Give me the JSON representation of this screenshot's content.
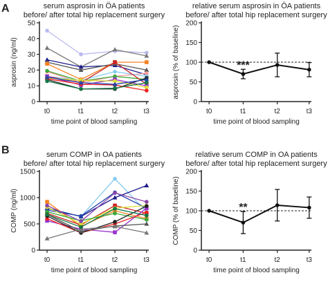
{
  "panel_labels": [
    "A",
    "B"
  ],
  "chart_data": [
    {
      "id": "A-left",
      "type": "line",
      "title": "serum asprosin in ÖA patients",
      "subtitle": "before/ after total hip replacement surgery",
      "xlabel": "time point of blood sampling",
      "ylabel": "asprosin (ng/ml)",
      "categories": [
        "t0",
        "t1",
        "t2",
        "t3"
      ],
      "ylim": [
        0,
        50
      ],
      "yticks": [
        0,
        10,
        20,
        30,
        40,
        50
      ],
      "series": [
        {
          "color": "#b9b9ee",
          "marker": "circle",
          "values": [
            45,
            30,
            32,
            31
          ]
        },
        {
          "color": "#777777",
          "marker": "triangle",
          "values": [
            34,
            22,
            33,
            29
          ]
        },
        {
          "color": "#1a1a8c",
          "marker": "triangle",
          "values": [
            26.5,
            22,
            23,
            17
          ]
        },
        {
          "color": "#555555",
          "marker": "triangle",
          "values": [
            25,
            20,
            24,
            20
          ]
        },
        {
          "color": "#f58220",
          "marker": "square",
          "values": [
            24,
            14,
            25,
            25
          ]
        },
        {
          "color": "#ff9999",
          "marker": "circle",
          "values": [
            19,
            12,
            16,
            18
          ]
        },
        {
          "color": "#3aa83a",
          "marker": "circle",
          "values": [
            19.5,
            13,
            16,
            14
          ]
        },
        {
          "color": "#88ccee",
          "marker": "circle",
          "values": [
            16,
            13.5,
            19,
            16
          ]
        },
        {
          "color": "#cc2222",
          "marker": "square",
          "values": [
            16,
            12,
            25,
            11
          ]
        },
        {
          "color": "#9933cc",
          "marker": "square",
          "values": [
            16,
            10.5,
            14,
            10
          ]
        },
        {
          "color": "#dddd33",
          "marker": "circle",
          "values": [
            15,
            13.5,
            13,
            9
          ]
        },
        {
          "color": "#222222",
          "marker": "circle",
          "values": [
            14,
            8,
            8,
            15
          ]
        },
        {
          "color": "#ee2222",
          "marker": "circle",
          "values": [
            14.5,
            11,
            10.5,
            7
          ]
        },
        {
          "color": "#2244aa",
          "marker": "triangle",
          "values": [
            15.5,
            12,
            11,
            14
          ]
        },
        {
          "color": "#117744",
          "marker": "circle",
          "values": [
            13,
            8,
            8.5,
            12
          ]
        }
      ]
    },
    {
      "id": "A-right",
      "type": "line",
      "title": "relative serum asprosin in ÖA patients",
      "subtitle": "before/ after total hip replacement surgery",
      "xlabel": "time point of blood sampling",
      "ylabel": "asprosin (% of baseline)",
      "categories": [
        "t0",
        "t1",
        "t2",
        "t3"
      ],
      "ylim": [
        0,
        200
      ],
      "yticks": [
        0,
        50,
        100,
        150,
        200
      ],
      "reference_line": 100,
      "series": [
        {
          "values": [
            100,
            70,
            93,
            81
          ],
          "error": [
            0,
            12,
            30,
            18
          ]
        }
      ],
      "annotations": [
        {
          "category": "t1",
          "text": "***"
        }
      ]
    },
    {
      "id": "B-left",
      "type": "line",
      "title": "serum COMP in OA patients",
      "subtitle": "before/ after total hip replacement surgery",
      "xlabel": "time point of blood sampling",
      "ylabel": "COMP (ng/ml)",
      "categories": [
        "t0",
        "t1",
        "t2",
        "t3"
      ],
      "ylim": [
        0,
        1500
      ],
      "yticks": [
        0,
        500,
        1000,
        1500
      ],
      "series": [
        {
          "color": "#88ccee",
          "marker": "circle",
          "values": [
            790,
            640,
            1360,
            730
          ]
        },
        {
          "color": "#1a1a8c",
          "marker": "triangle",
          "values": [
            800,
            640,
            1000,
            1230
          ]
        },
        {
          "color": "#2244aa",
          "marker": "circle",
          "values": [
            760,
            650,
            1100,
            800
          ]
        },
        {
          "color": "#f58220",
          "marker": "square",
          "values": [
            920,
            450,
            750,
            600
          ]
        },
        {
          "color": "#cc2222",
          "marker": "square",
          "values": [
            700,
            480,
            850,
            700
          ]
        },
        {
          "color": "#dddd33",
          "marker": "circle",
          "values": [
            820,
            500,
            800,
            850
          ]
        },
        {
          "color": "#3aa83a",
          "marker": "circle",
          "values": [
            730,
            560,
            700,
            580
          ]
        },
        {
          "color": "#9933cc",
          "marker": "square",
          "values": [
            560,
            400,
            340,
            800
          ]
        },
        {
          "color": "#ee2222",
          "marker": "circle",
          "values": [
            600,
            330,
            500,
            720
          ]
        },
        {
          "color": "#222222",
          "marker": "circle",
          "values": [
            650,
            330,
            540,
            840
          ]
        },
        {
          "color": "#555555",
          "marker": "triangle",
          "values": [
            680,
            360,
            460,
            500
          ]
        },
        {
          "color": "#777777",
          "marker": "triangle",
          "values": [
            220,
            400,
            450,
            330
          ]
        },
        {
          "color": "#8844aa",
          "marker": "circle",
          "values": [
            850,
            550,
            1090,
            920
          ]
        },
        {
          "color": "#117744",
          "marker": "circle",
          "values": [
            680,
            440,
            790,
            660
          ]
        }
      ]
    },
    {
      "id": "B-right",
      "type": "line",
      "title": "relative serum COMP in OA patients",
      "subtitle": "before/ after total hip replacement surgery",
      "xlabel": "time point of blood sampling",
      "ylabel": "COMP (% of baseline)",
      "categories": [
        "t0",
        "t1",
        "t2",
        "t3"
      ],
      "ylim": [
        0,
        200
      ],
      "yticks": [
        0,
        50,
        100,
        150,
        200
      ],
      "reference_line": 100,
      "series": [
        {
          "values": [
            100,
            70,
            114,
            108
          ],
          "error": [
            0,
            28,
            40,
            27
          ]
        }
      ],
      "annotations": [
        {
          "category": "t1",
          "text": "**"
        }
      ]
    }
  ]
}
